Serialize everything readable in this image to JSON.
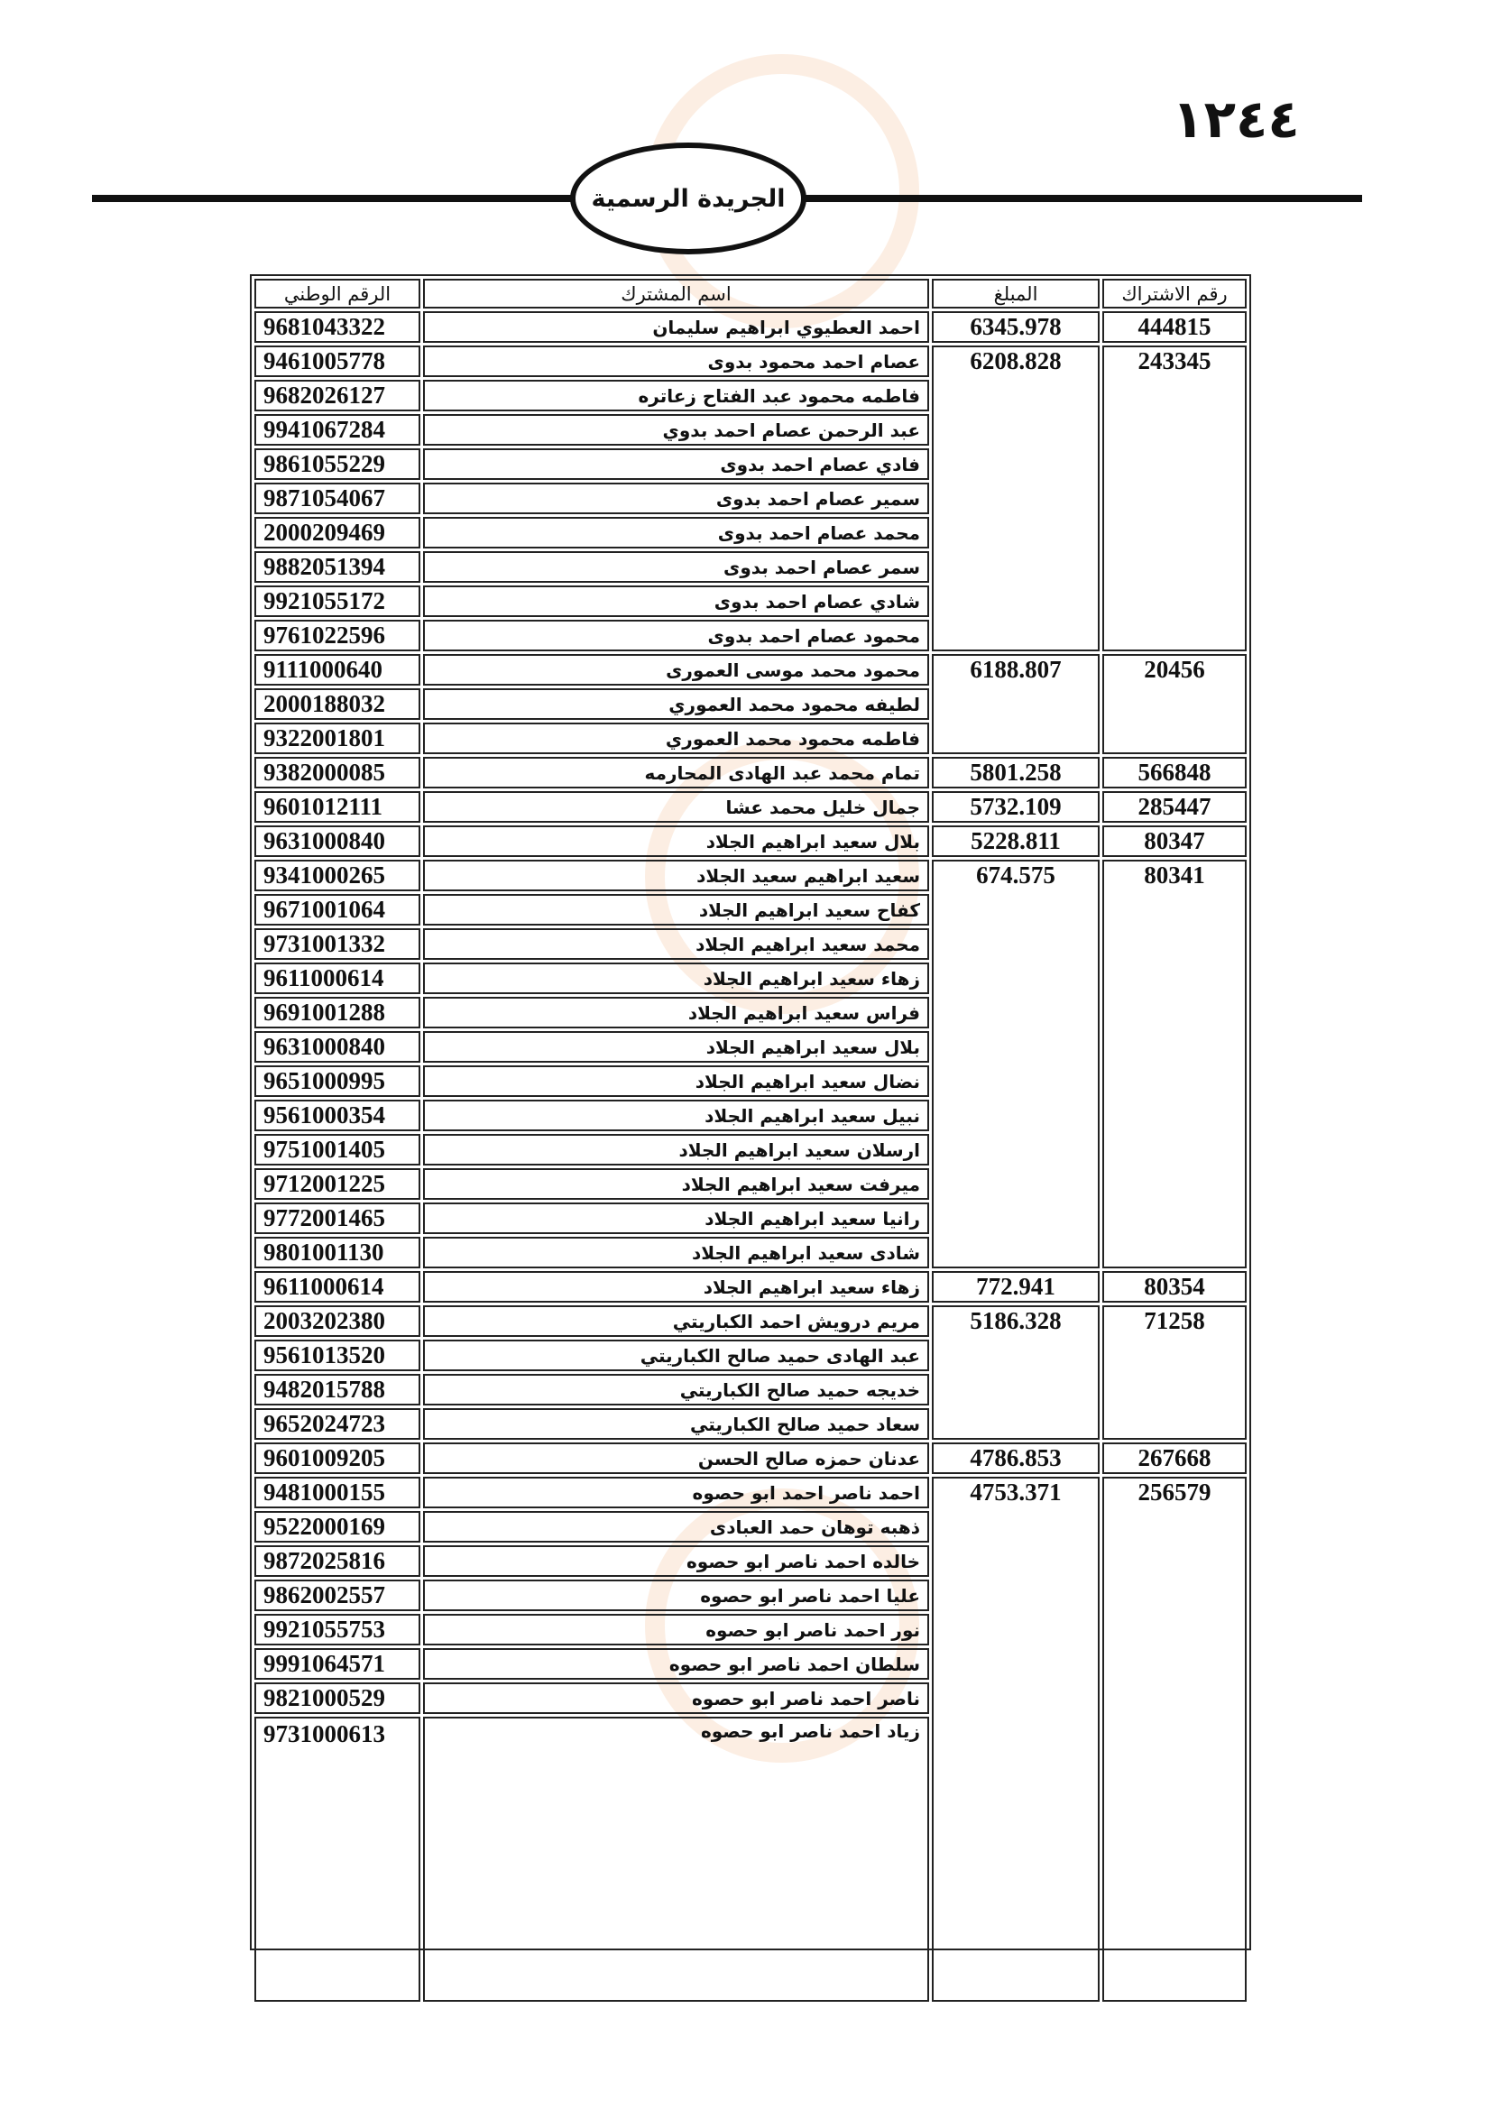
{
  "page_number": "١٢٤٤",
  "header_title": "الجريدة الرسمية",
  "table": {
    "headers": {
      "national_id": "الرقم الوطني",
      "name": "اسم المشترك",
      "amount": "المبلغ",
      "subscription": "رقم الاشتراك"
    },
    "groups": [
      {
        "subscription": "444815",
        "amount": "6345.978",
        "members": [
          {
            "name": "احمد العطيوي ابراهيم سليمان",
            "national_id": "9681043322"
          }
        ]
      },
      {
        "subscription": "243345",
        "amount": "6208.828",
        "members": [
          {
            "name": "عصام احمد محمود بدوى",
            "national_id": "9461005778"
          },
          {
            "name": "فاطمه محمود عبد الفتاح زعاتره",
            "national_id": "9682026127"
          },
          {
            "name": "عبد الرحمن عصام احمد بدوي",
            "national_id": "9941067284"
          },
          {
            "name": "فادي عصام احمد بدوى",
            "national_id": "9861055229"
          },
          {
            "name": "سمير عصام احمد بدوى",
            "national_id": "9871054067"
          },
          {
            "name": "محمد عصام احمد بدوى",
            "national_id": "2000209469"
          },
          {
            "name": "سمر عصام احمد بدوى",
            "national_id": "9882051394"
          },
          {
            "name": "شادي عصام احمد بدوى",
            "national_id": "9921055172"
          },
          {
            "name": "محمود عصام احمد بدوى",
            "national_id": "9761022596"
          }
        ]
      },
      {
        "subscription": "20456",
        "amount": "6188.807",
        "members": [
          {
            "name": "محمود محمد موسى العمورى",
            "national_id": "9111000640"
          },
          {
            "name": "لطيفه محمود محمد العموري",
            "national_id": "2000188032"
          },
          {
            "name": "فاطمه محمود محمد العموري",
            "national_id": "9322001801"
          }
        ]
      },
      {
        "subscription": "566848",
        "amount": "5801.258",
        "members": [
          {
            "name": "تمام محمد عبد الهادى المحارمه",
            "national_id": "9382000085"
          }
        ]
      },
      {
        "subscription": "285447",
        "amount": "5732.109",
        "members": [
          {
            "name": "جمال خليل محمد عشا",
            "national_id": "9601012111"
          }
        ]
      },
      {
        "subscription": "80347",
        "amount": "5228.811",
        "members": [
          {
            "name": "بلال سعيد ابراهيم الجلاد",
            "national_id": "9631000840"
          }
        ]
      },
      {
        "subscription": "80341",
        "amount": "674.575",
        "members": [
          {
            "name": "سعيد ابراهيم سعيد الجلاد",
            "national_id": "9341000265"
          },
          {
            "name": "كفاح سعيد ابراهيم الجلاد",
            "national_id": "9671001064"
          },
          {
            "name": "محمد سعيد ابراهيم الجلاد",
            "national_id": "9731001332"
          },
          {
            "name": "زهاء سعيد ابراهيم الجلاد",
            "national_id": "9611000614"
          },
          {
            "name": "فراس سعيد ابراهيم الجلاد",
            "national_id": "9691001288"
          },
          {
            "name": "بلال سعيد ابراهيم الجلاد",
            "national_id": "9631000840"
          },
          {
            "name": "نضال سعيد ابراهيم الجلاد",
            "national_id": "9651000995"
          },
          {
            "name": "نبيل سعيد ابراهيم الجلاد",
            "national_id": "9561000354"
          },
          {
            "name": "ارسلان سعيد ابراهيم الجلاد",
            "national_id": "9751001405"
          },
          {
            "name": "ميرفت سعيد ابراهيم الجلاد",
            "national_id": "9712001225"
          },
          {
            "name": "رانيا سعيد ابراهيم الجلاد",
            "national_id": "9772001465"
          },
          {
            "name": "شادى سعيد ابراهيم الجلاد",
            "national_id": "9801001130"
          }
        ]
      },
      {
        "subscription": "80354",
        "amount": "772.941",
        "members": [
          {
            "name": "زهاء سعيد ابراهيم الجلاد",
            "national_id": "9611000614"
          }
        ]
      },
      {
        "subscription": "71258",
        "amount": "5186.328",
        "members": [
          {
            "name": "مريم درويش احمد الكباريتي",
            "national_id": "2003202380"
          },
          {
            "name": "عبد الهادى حميد صالح الكباريتي",
            "national_id": "9561013520"
          },
          {
            "name": "خديجه حميد صالح الكباريتي",
            "national_id": "9482015788"
          },
          {
            "name": "سعاد حميد صالح الكباريتي",
            "national_id": "9652024723"
          }
        ]
      },
      {
        "subscription": "267668",
        "amount": "4786.853",
        "members": [
          {
            "name": "عدنان حمزه صالح الحسن",
            "national_id": "9601009205"
          }
        ]
      },
      {
        "subscription": "256579",
        "amount": "4753.371",
        "members": [
          {
            "name": "احمد ناصر احمد ابو حصوه",
            "national_id": "9481000155"
          },
          {
            "name": "ذهبه توهان حمد العبادى",
            "national_id": "9522000169"
          },
          {
            "name": "خالده احمد ناصر ابو حصوه",
            "national_id": "9872025816"
          },
          {
            "name": "عليا احمد ناصر ابو حصوه",
            "national_id": "9862002557"
          },
          {
            "name": "نور احمد ناصر ابو حصوه",
            "national_id": "9921055753"
          },
          {
            "name": "سلطان احمد ناصر ابو حصوه",
            "national_id": "9991064571"
          },
          {
            "name": "ناصر احمد ناصر ابو حصوه",
            "national_id": "9821000529"
          },
          {
            "name": "زياد احمد ناصر ابو حصوه",
            "national_id": "9731000613"
          }
        ]
      }
    ]
  }
}
